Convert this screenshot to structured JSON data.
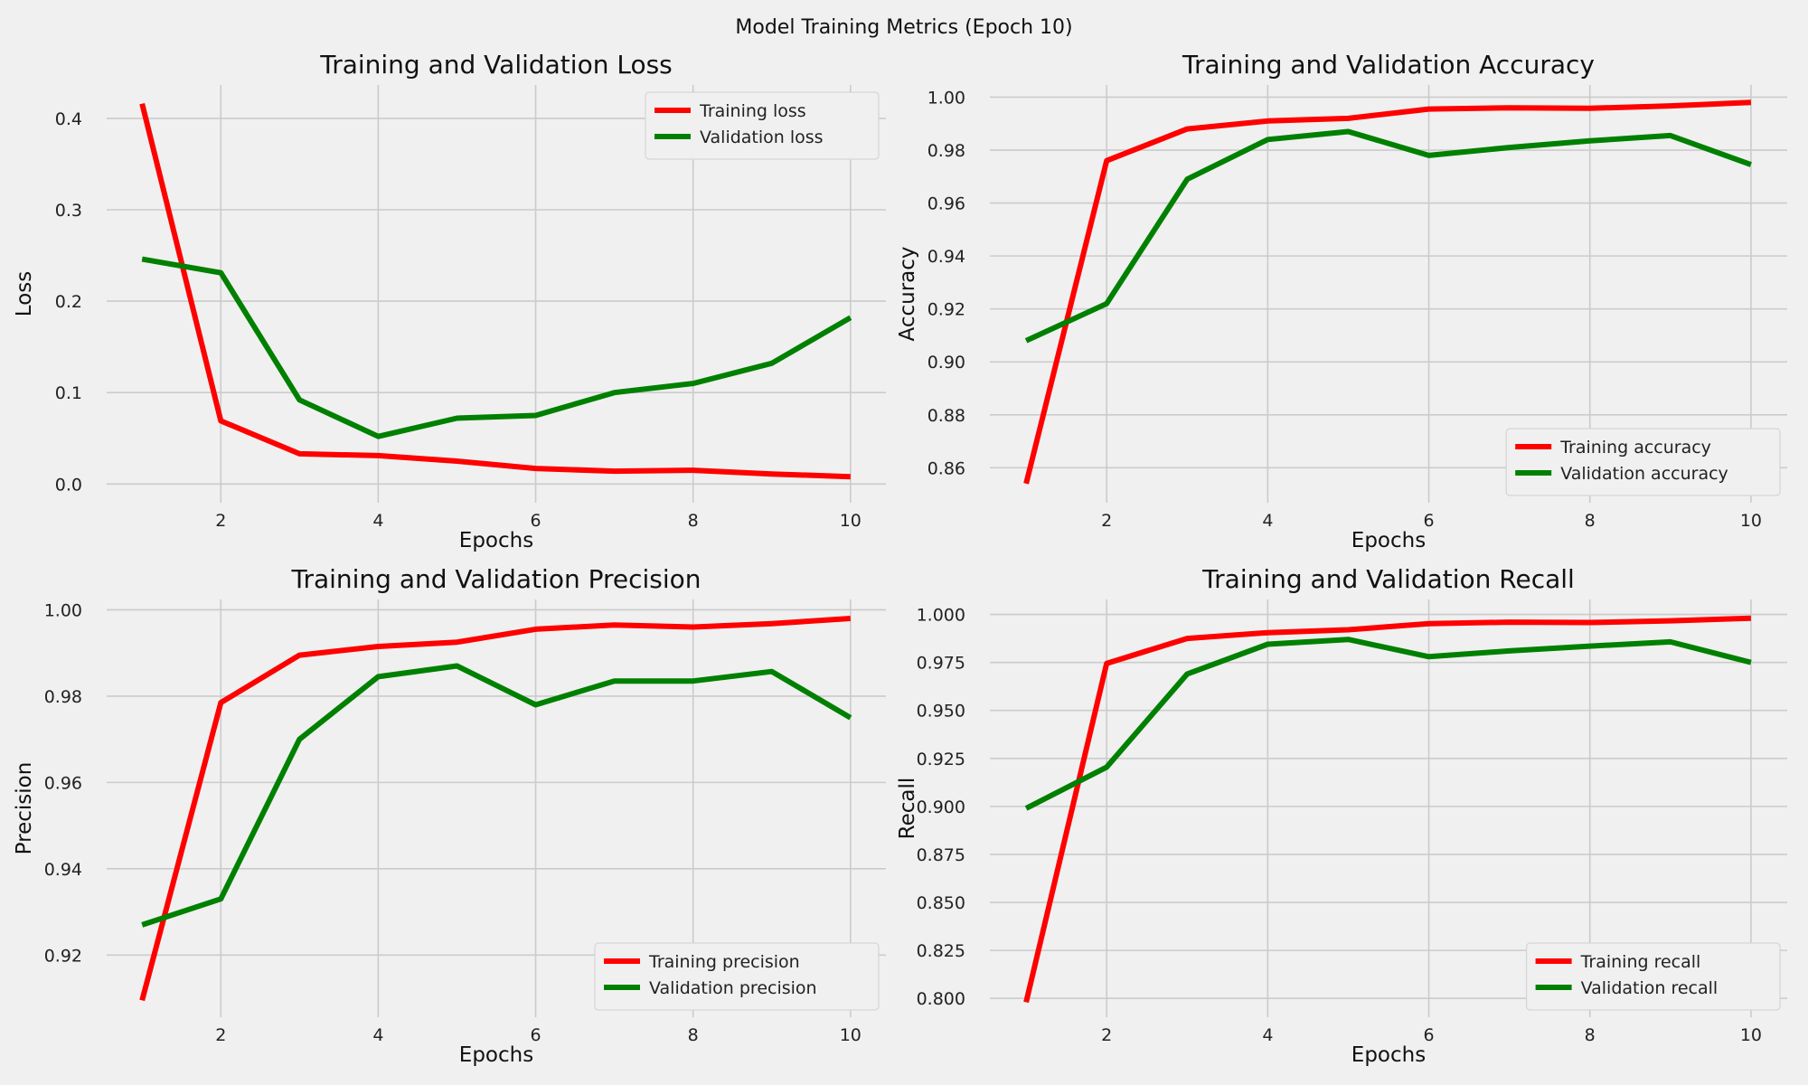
{
  "suptitle": "Model Training Metrics (Epoch 10)",
  "colors": {
    "training": "#ff0000",
    "validation": "#008000",
    "background": "#f0f0f0",
    "grid": "#cbcbcb"
  },
  "chart_data": [
    {
      "type": "line",
      "title": "Training and Validation Loss",
      "xlabel": "Epochs",
      "ylabel": "Loss",
      "x": [
        1,
        2,
        3,
        4,
        5,
        6,
        7,
        8,
        9,
        10
      ],
      "xticks": [
        "2",
        "4",
        "6",
        "8",
        "10"
      ],
      "yticks": [
        "0.0",
        "0.1",
        "0.2",
        "0.3",
        "0.4"
      ],
      "ylim": [
        -0.0205,
        0.4365
      ],
      "legend": "upper right",
      "grid": true,
      "series": [
        {
          "name": "Training loss",
          "color": "#ff0000",
          "values": [
            0.416,
            0.069,
            0.033,
            0.031,
            0.025,
            0.017,
            0.014,
            0.015,
            0.011,
            0.008
          ]
        },
        {
          "name": "Validation loss",
          "color": "#008000",
          "values": [
            0.246,
            0.231,
            0.092,
            0.052,
            0.072,
            0.075,
            0.1,
            0.11,
            0.132,
            0.182
          ]
        }
      ]
    },
    {
      "type": "line",
      "title": "Training and Validation Accuracy",
      "xlabel": "Epochs",
      "ylabel": "Accuracy",
      "x": [
        1,
        2,
        3,
        4,
        5,
        6,
        7,
        8,
        9,
        10
      ],
      "xticks": [
        "2",
        "4",
        "6",
        "8",
        "10"
      ],
      "yticks": [
        "0.86",
        "0.88",
        "0.90",
        "0.92",
        "0.94",
        "0.96",
        "0.98",
        "1.00"
      ],
      "ylim": [
        0.8468,
        1.0046
      ],
      "legend": "lower right",
      "grid": true,
      "series": [
        {
          "name": "Training accuracy",
          "color": "#ff0000",
          "values": [
            0.854,
            0.976,
            0.988,
            0.991,
            0.992,
            0.9955,
            0.996,
            0.9958,
            0.9967,
            0.998
          ]
        },
        {
          "name": "Validation accuracy",
          "color": "#008000",
          "values": [
            0.908,
            0.922,
            0.969,
            0.984,
            0.987,
            0.978,
            0.981,
            0.9835,
            0.9855,
            0.9745
          ]
        }
      ]
    },
    {
      "type": "line",
      "title": "Training and Validation Precision",
      "xlabel": "Epochs",
      "ylabel": "Precision",
      "x": [
        1,
        2,
        3,
        4,
        5,
        6,
        7,
        8,
        9,
        10
      ],
      "xticks": [
        "2",
        "4",
        "6",
        "8",
        "10"
      ],
      "yticks": [
        "0.92",
        "0.94",
        "0.96",
        "0.98",
        "1.00"
      ],
      "ylim": [
        0.9056,
        1.0024
      ],
      "legend": "lower right",
      "grid": true,
      "series": [
        {
          "name": "Training precision",
          "color": "#ff0000",
          "values": [
            0.9095,
            0.9785,
            0.9895,
            0.9915,
            0.9925,
            0.9955,
            0.9965,
            0.996,
            0.9968,
            0.998
          ]
        },
        {
          "name": "Validation precision",
          "color": "#008000",
          "values": [
            0.927,
            0.933,
            0.97,
            0.9845,
            0.987,
            0.978,
            0.9835,
            0.9835,
            0.9857,
            0.975
          ]
        }
      ]
    },
    {
      "type": "line",
      "title": "Training and Validation Recall",
      "xlabel": "Epochs",
      "ylabel": "Recall",
      "x": [
        1,
        2,
        3,
        4,
        5,
        6,
        7,
        8,
        9,
        10
      ],
      "xticks": [
        "2",
        "4",
        "6",
        "8",
        "10"
      ],
      "yticks": [
        "0.800",
        "0.825",
        "0.850",
        "0.875",
        "0.900",
        "0.925",
        "0.950",
        "0.975",
        "1.000"
      ],
      "ylim": [
        0.7902,
        1.0078
      ],
      "legend": "lower right",
      "grid": true,
      "series": [
        {
          "name": "Training recall",
          "color": "#ff0000",
          "values": [
            0.798,
            0.9745,
            0.9875,
            0.9905,
            0.992,
            0.9952,
            0.996,
            0.9958,
            0.9967,
            0.998
          ]
        },
        {
          "name": "Validation recall",
          "color": "#008000",
          "values": [
            0.899,
            0.9205,
            0.969,
            0.9845,
            0.987,
            0.978,
            0.981,
            0.9835,
            0.9857,
            0.975
          ]
        }
      ]
    }
  ]
}
